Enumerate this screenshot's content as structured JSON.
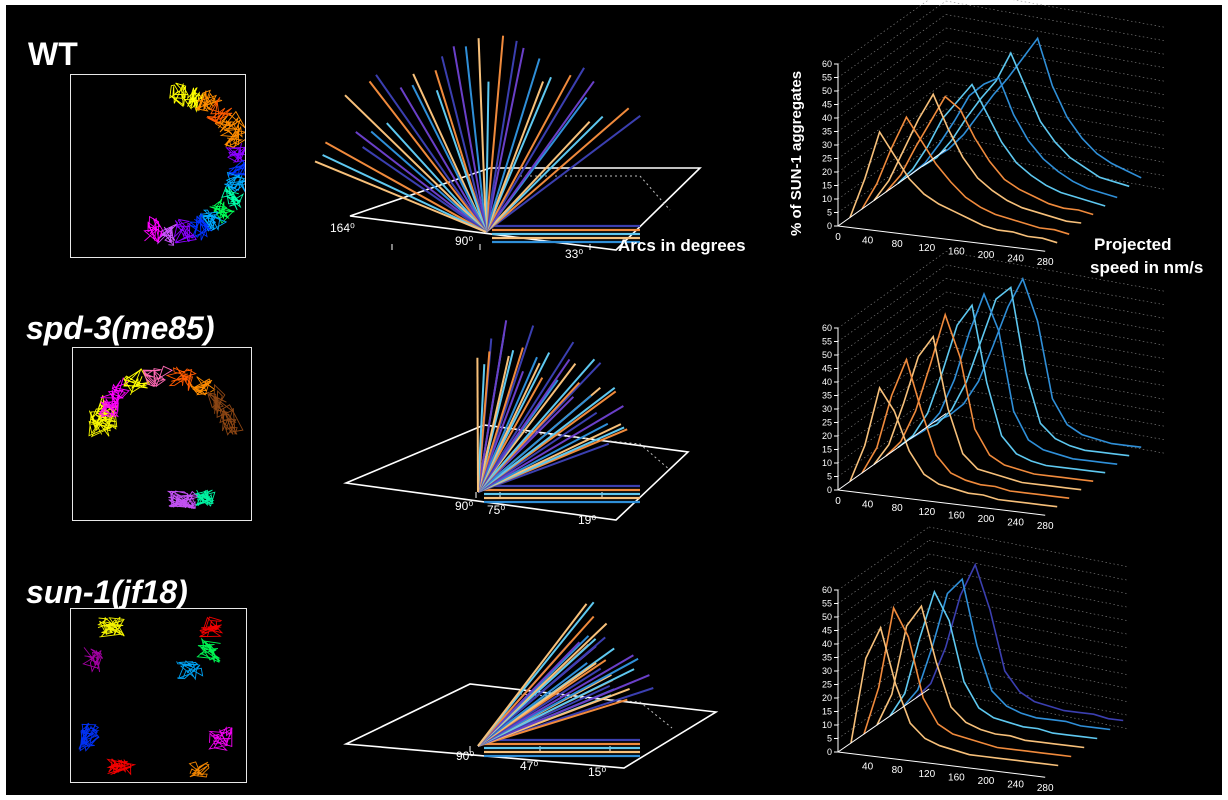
{
  "rows": [
    {
      "label": "WT",
      "italic": false
    },
    {
      "label": "spd-3(me85)",
      "italic": true
    },
    {
      "label": "sun-1(jf18)",
      "italic": true
    }
  ],
  "angle_annotations": {
    "arcs_label": "Arcs in degrees",
    "wt": [
      "164⁰",
      "90⁰",
      "33⁰"
    ],
    "spd3": [
      "90⁰",
      "75⁰",
      "19⁰"
    ],
    "sun1": [
      "90⁰",
      "47⁰",
      "15⁰"
    ]
  },
  "histogram_annotations": {
    "ylabel": "% of SUN-1 aggregates",
    "xlabel_line1": "Projected",
    "xlabel_line2": "speed in nm/s"
  },
  "colors": {
    "background": "#000000",
    "orange_light": "#f7c07a",
    "orange": "#f08a3c",
    "blue_light": "#5ec8f0",
    "blue": "#2f8fd8",
    "indigo": "#3b3fb0",
    "violet": "#6a3fc8"
  },
  "track_colors": [
    "#ffff00",
    "#ff8c00",
    "#ff5a00",
    "#ff00ff",
    "#cc55ff",
    "#8a00ff",
    "#0033ff",
    "#00aaff",
    "#00ffaa",
    "#00ff55",
    "#ff0000",
    "#8b4513",
    "#ff69b4",
    "#aa00aa"
  ],
  "chart_data": [
    {
      "type": "line",
      "panel": "WT histogram",
      "ylabel": "% of SUN-1 aggregates",
      "xlabel": "Projected speed in nm/s",
      "x": [
        0,
        20,
        40,
        60,
        80,
        100,
        120,
        140,
        160,
        180,
        200,
        220,
        240,
        260,
        280
      ],
      "x_ticks": [
        0,
        40,
        80,
        120,
        160,
        200,
        240,
        280
      ],
      "y_ticks": [
        0,
        5,
        10,
        15,
        20,
        25,
        30,
        35,
        40,
        45,
        50,
        55,
        60
      ],
      "ylim": [
        0,
        60
      ],
      "series": [
        {
          "color": "#f7c07a",
          "values": [
            0,
            15,
            33,
            25,
            17,
            12,
            9,
            7,
            5,
            3,
            2,
            2,
            1,
            1,
            0
          ]
        },
        {
          "color": "#f08a3c",
          "values": [
            0,
            10,
            24,
            36,
            28,
            20,
            14,
            9,
            6,
            4,
            3,
            2,
            1,
            1,
            0
          ]
        },
        {
          "color": "#f7c07a",
          "values": [
            0,
            8,
            20,
            32,
            42,
            30,
            20,
            13,
            9,
            6,
            4,
            3,
            2,
            1,
            1
          ]
        },
        {
          "color": "#f08a3c",
          "values": [
            0,
            7,
            18,
            28,
            38,
            34,
            24,
            16,
            10,
            7,
            5,
            3,
            2,
            2,
            1
          ]
        },
        {
          "color": "#5ec8f0",
          "values": [
            0,
            6,
            15,
            26,
            33,
            40,
            30,
            20,
            13,
            9,
            6,
            4,
            3,
            2,
            1
          ]
        },
        {
          "color": "#2f8fd8",
          "values": [
            0,
            5,
            13,
            22,
            32,
            37,
            40,
            27,
            18,
            12,
            8,
            5,
            3,
            2,
            1
          ]
        },
        {
          "color": "#5ec8f0",
          "values": [
            0,
            4,
            11,
            20,
            28,
            35,
            46,
            34,
            22,
            15,
            10,
            7,
            4,
            3,
            2
          ]
        },
        {
          "color": "#2f8fd8",
          "values": [
            0,
            4,
            10,
            18,
            26,
            33,
            41,
            49,
            32,
            21,
            14,
            9,
            6,
            4,
            2
          ]
        }
      ]
    },
    {
      "type": "line",
      "panel": "spd-3(me85) histogram",
      "x": [
        0,
        20,
        40,
        60,
        80,
        100,
        120,
        140,
        160,
        180,
        200,
        220,
        240,
        260,
        280
      ],
      "x_ticks": [
        0,
        40,
        80,
        120,
        160,
        200,
        240,
        280
      ],
      "y_ticks": [
        0,
        5,
        10,
        15,
        20,
        25,
        30,
        35,
        40,
        45,
        50,
        55,
        60
      ],
      "ylim": [
        0,
        60
      ],
      "series": [
        {
          "color": "#f7c07a",
          "values": [
            0,
            14,
            36,
            28,
            14,
            6,
            3,
            2,
            1,
            1,
            0,
            0,
            0,
            0,
            0
          ]
        },
        {
          "color": "#f08a3c",
          "values": [
            0,
            10,
            30,
            44,
            26,
            10,
            4,
            2,
            1,
            1,
            0,
            0,
            0,
            0,
            0
          ]
        },
        {
          "color": "#f7c07a",
          "values": [
            0,
            8,
            24,
            42,
            50,
            24,
            8,
            3,
            2,
            1,
            0,
            0,
            0,
            0,
            0
          ]
        },
        {
          "color": "#f08a3c",
          "values": [
            0,
            6,
            18,
            36,
            55,
            40,
            14,
            5,
            2,
            1,
            0,
            0,
            0,
            0,
            0
          ]
        },
        {
          "color": "#5ec8f0",
          "values": [
            0,
            5,
            14,
            30,
            48,
            56,
            28,
            9,
            3,
            1,
            0,
            0,
            0,
            0,
            0
          ]
        },
        {
          "color": "#2f8fd8",
          "values": [
            0,
            4,
            11,
            24,
            42,
            57,
            44,
            15,
            5,
            2,
            1,
            0,
            0,
            0,
            0
          ]
        },
        {
          "color": "#5ec8f0",
          "values": [
            0,
            3,
            9,
            20,
            36,
            52,
            57,
            26,
            8,
            3,
            1,
            0,
            0,
            0,
            0
          ]
        },
        {
          "color": "#2f8fd8",
          "values": [
            0,
            3,
            8,
            17,
            31,
            46,
            57,
            42,
            14,
            5,
            2,
            1,
            0,
            0,
            0
          ]
        }
      ]
    },
    {
      "type": "line",
      "panel": "sun-1(jf18) histogram",
      "x": [
        0,
        20,
        40,
        60,
        80,
        100,
        120,
        140,
        160,
        180,
        200,
        220,
        240,
        260,
        280
      ],
      "x_ticks": [
        40,
        80,
        120,
        160,
        200,
        240,
        280
      ],
      "y_ticks": [
        0,
        5,
        10,
        15,
        20,
        25,
        30,
        35,
        40,
        45,
        50,
        55,
        60
      ],
      "ylim": [
        0,
        60
      ],
      "series": [
        {
          "color": "#f7c07a",
          "values": [
            0,
            32,
            44,
            24,
            10,
            5,
            3,
            2,
            1,
            1,
            1,
            1,
            1,
            1,
            1
          ]
        },
        {
          "color": "#f08a3c",
          "values": [
            0,
            18,
            48,
            38,
            16,
            7,
            4,
            3,
            2,
            1,
            1,
            1,
            1,
            1,
            1
          ]
        },
        {
          "color": "#f7c07a",
          "values": [
            0,
            12,
            38,
            46,
            26,
            10,
            5,
            3,
            2,
            2,
            1,
            1,
            1,
            1,
            1
          ]
        },
        {
          "color": "#5ec8f0",
          "values": [
            0,
            9,
            30,
            48,
            38,
            16,
            7,
            4,
            3,
            2,
            2,
            1,
            1,
            1,
            1
          ]
        },
        {
          "color": "#2f8fd8",
          "values": [
            0,
            7,
            24,
            44,
            50,
            26,
            10,
            5,
            3,
            2,
            2,
            2,
            1,
            1,
            1
          ]
        },
        {
          "color": "#3b3fb0",
          "values": [
            0,
            6,
            20,
            40,
            52,
            36,
            14,
            7,
            4,
            3,
            2,
            2,
            2,
            1,
            1
          ]
        }
      ]
    }
  ]
}
